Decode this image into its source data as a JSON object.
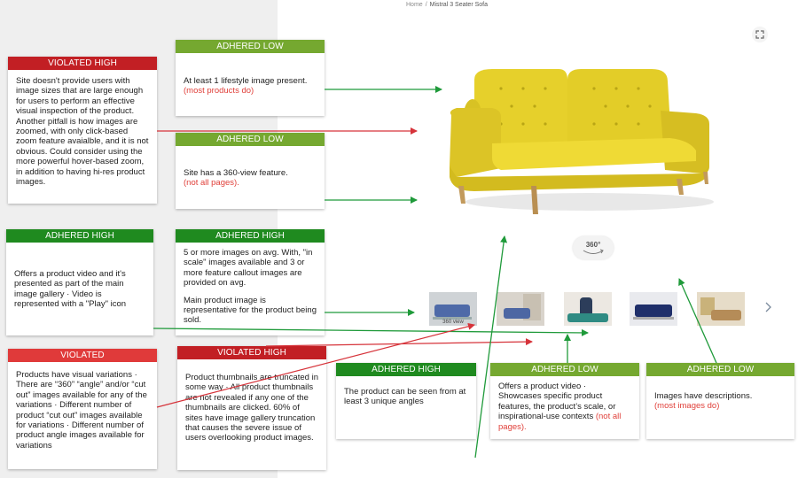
{
  "breadcrumb": {
    "home": "Home",
    "separator": "/",
    "current": "Mistral 3 Seater Sofa"
  },
  "colors": {
    "violated_high": "#c21f24",
    "violated": "#e03a3a",
    "adhered_high": "#1f8a1f",
    "adhered_low": "#75a830",
    "note_red": "#e0403a",
    "sofa_yellow": "#e3cf2a"
  },
  "icons": {
    "expand": "expand-icon",
    "view360": "view-360-icon",
    "next": "chevron-right-icon"
  },
  "view360": {
    "label": "360°"
  },
  "thumbnails": [
    {
      "label": "360 view"
    },
    {
      "label": ""
    },
    {
      "label": ""
    },
    {
      "label": ""
    },
    {
      "label": ""
    }
  ],
  "cards": {
    "c1": {
      "head": "VIOLATED HIGH",
      "body": "Site  doesn't provide users with image sizes that are large enough for users to perform an effective visual inspection of the product. Another pitfall is how images are zoomed, with only click-based zoom feature avaialble, and it is not obvious. Could consider using the more powerful hover-based zoom, in addition to having hi-res product images."
    },
    "c2": {
      "head": "ADHERED LOW",
      "body": "At least 1 lifestyle image present.",
      "note": "(most products  do)"
    },
    "c3": {
      "head": "ADHERED LOW",
      "body": "Site has a 360-view feature.",
      "note": "(not all pages)."
    },
    "c4": {
      "head": "ADHERED HIGH",
      "body": "Offers a product video and it's presented as part of the main image gallery · Video is represented with a \"Play\" icon"
    },
    "c5": {
      "head": "ADHERED HIGH",
      "body": "5 or more images on avg. With, \"in scale\" images available and 3 or more feature callout images are provided on avg.",
      "body2": "Main product image is representative for the product being sold."
    },
    "c6": {
      "head": "VIOLATED",
      "body": "Products have visual variations · There are “360” “angle” and/or “cut out” images available for any of the variations · Different number of product “cut out” images available for variations · Different number of product angle images available for variations"
    },
    "c7": {
      "head": "VIOLATED HIGH",
      "body": "Product thumbnails are truncated in some way ·  All product thumbnails are not revealed if any one of the thumbnails are clicked. 60% of sites have image gallery truncation that causes the severe issue of users overlooking product images."
    },
    "c8": {
      "head": "ADHERED HIGH",
      "body": "The product can be seen from at least 3 unique angles"
    },
    "c9": {
      "head": "ADHERED LOW",
      "body": "Offers a product video · Showcases specific product features, the product’s scale, or inspirational-use contexts",
      "note": "(not all pages)."
    },
    "c10": {
      "head": "ADHERED LOW",
      "body": "Images have descriptions.",
      "note": "(most images do)"
    }
  }
}
